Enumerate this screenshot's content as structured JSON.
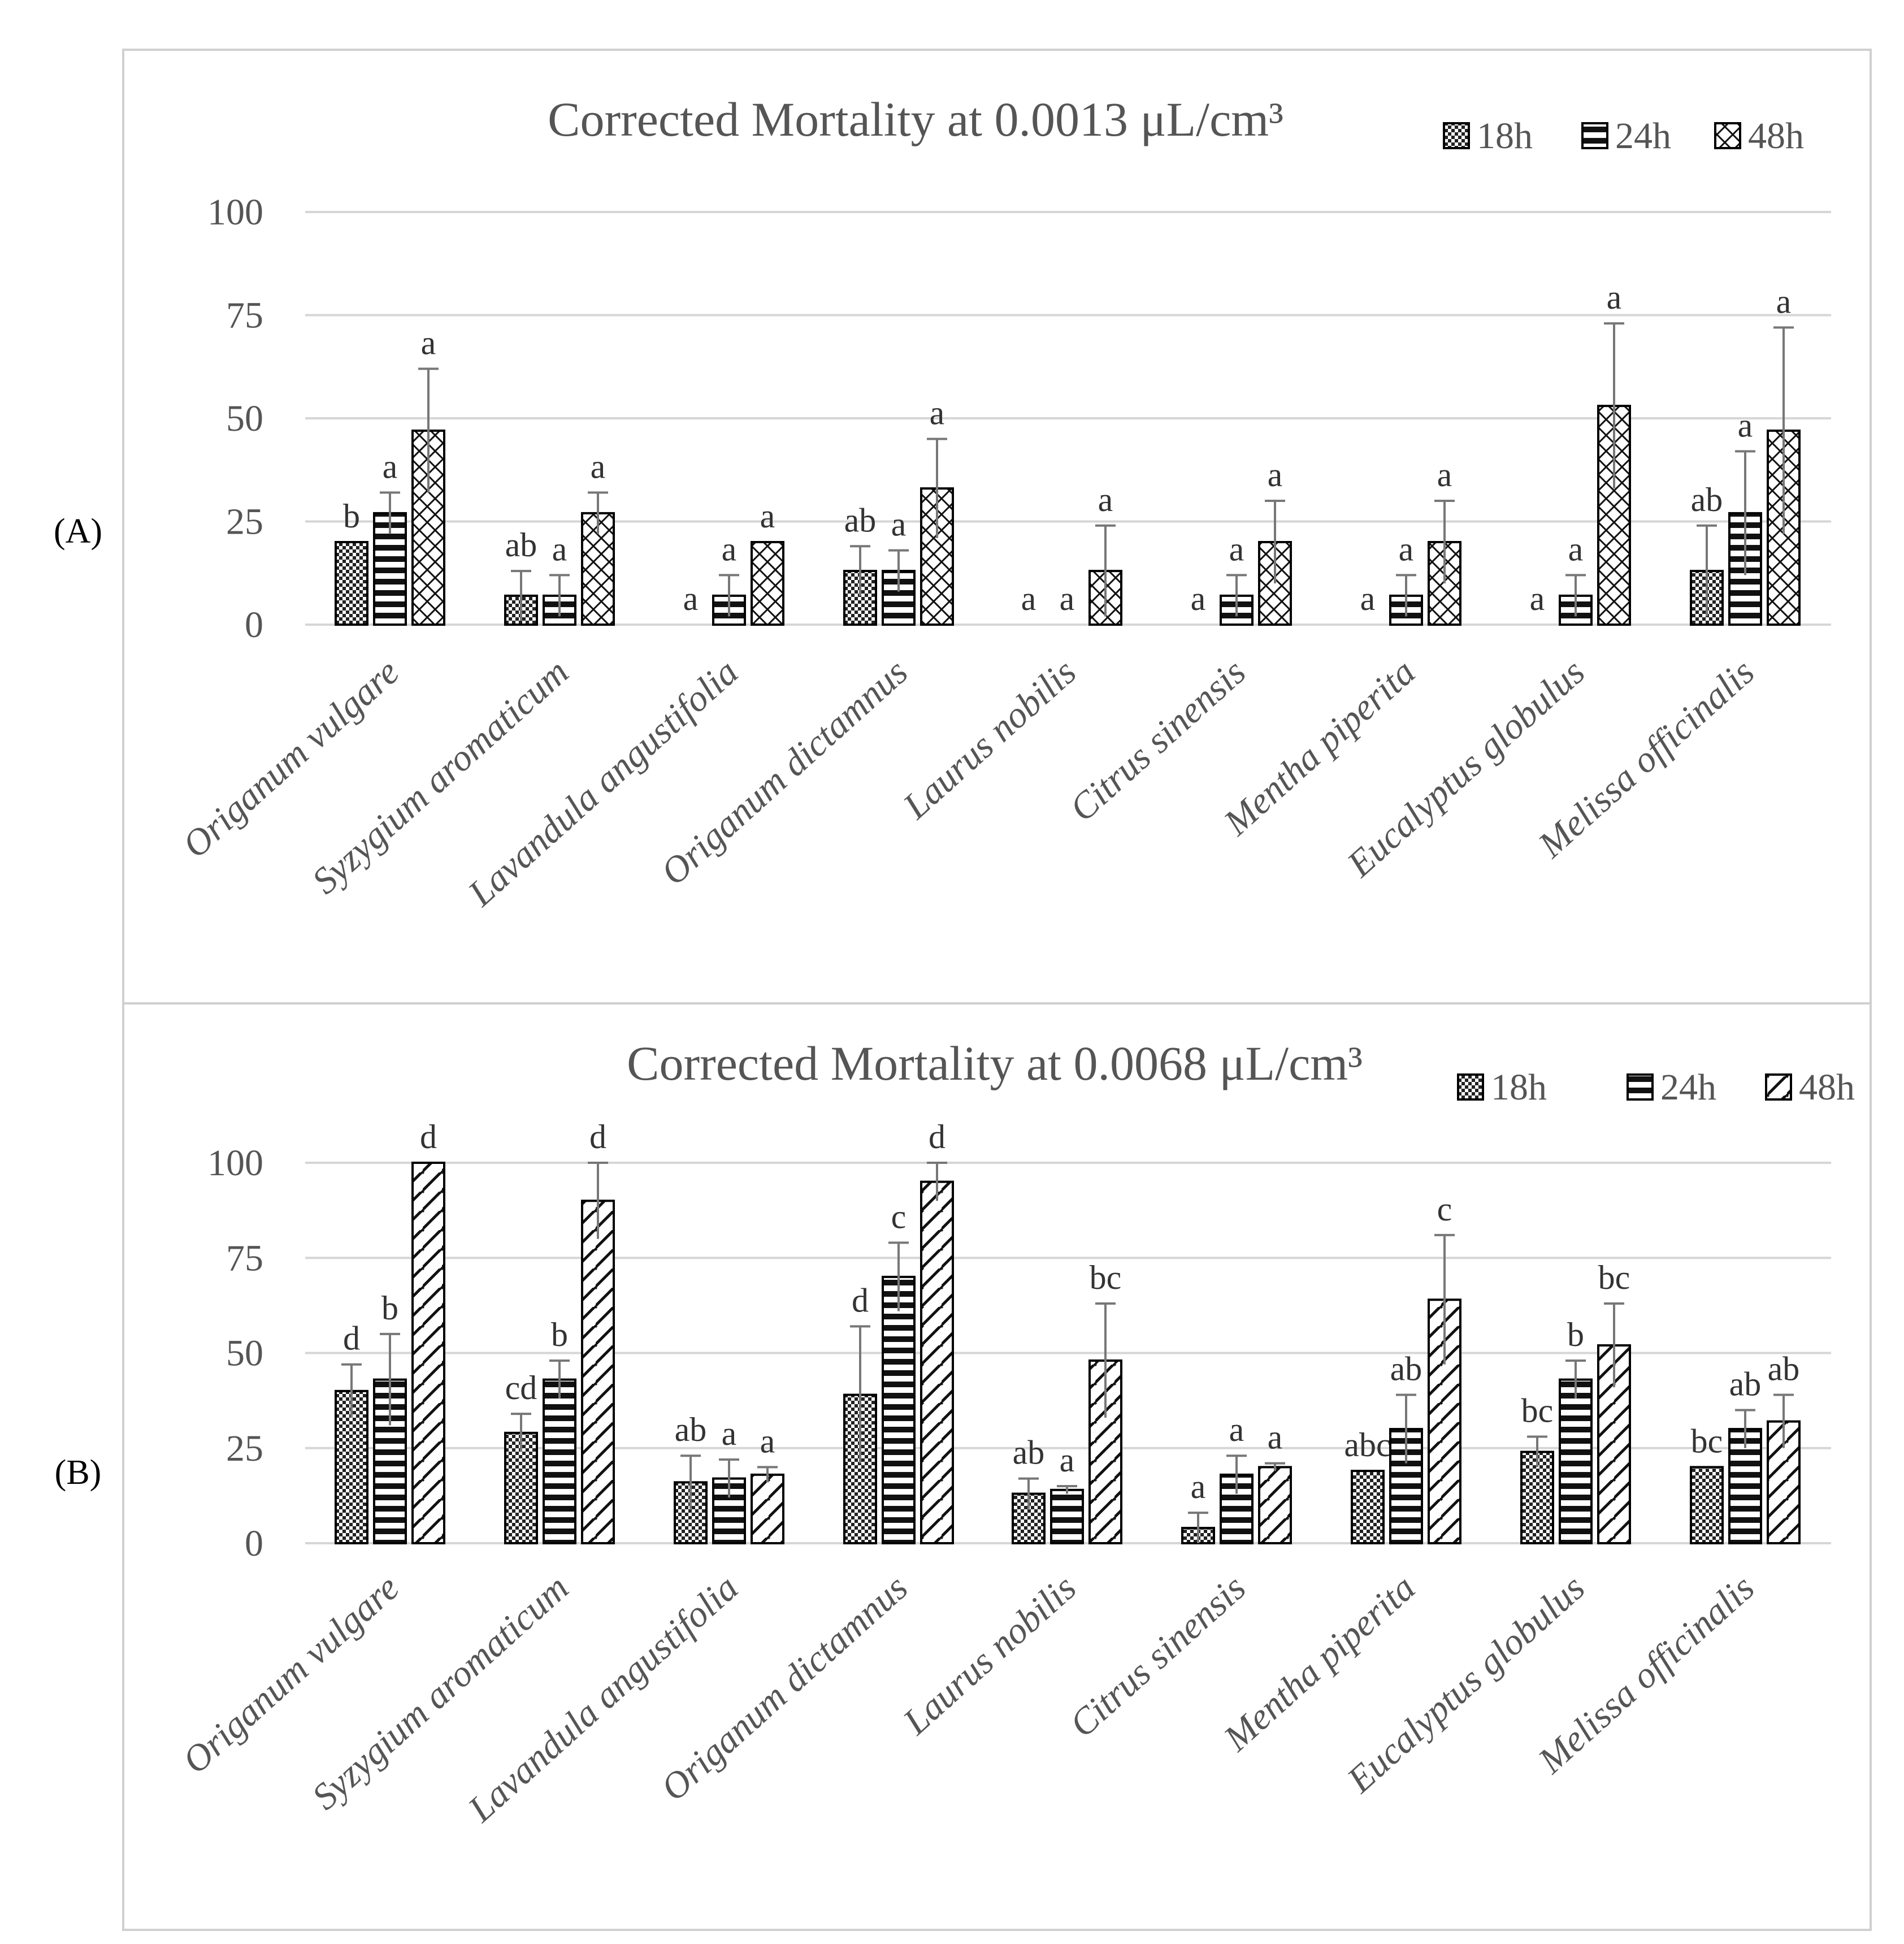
{
  "panel_labels": [
    "(A)",
    "(B)"
  ],
  "legend": {
    "swatch_colors": [
      "#555555",
      "#1e1e1e",
      "#ffffff"
    ]
  },
  "chart_data": [
    {
      "type": "bar",
      "title": "Corrected Mortality at 0.0013 μL/cm³",
      "panel_label": "(A)",
      "xlabel": "",
      "ylabel": "",
      "ylim": [
        0,
        100
      ],
      "yticks": [
        0,
        25,
        50,
        75,
        100
      ],
      "grid": true,
      "legend_position": "top-right",
      "categories": [
        "Origanum vulgare",
        "Syzygium aromaticum",
        "Lavandula angustifolia",
        "Origanum dictamnus",
        "Laurus nobilis",
        "Citrus sinensis",
        "Mentha piperita",
        "Eucalyptus globulus",
        "Melissa officinalis"
      ],
      "series": [
        {
          "name": "18h",
          "pattern": "checker",
          "values": [
            20,
            7,
            0,
            13,
            0,
            0,
            0,
            0,
            13
          ],
          "errors": [
            0,
            6,
            0,
            6,
            0,
            0,
            0,
            0,
            11
          ],
          "letters": [
            "b",
            "ab",
            "a",
            "ab",
            "a",
            "a",
            "a",
            "a",
            "ab"
          ]
        },
        {
          "name": "24h",
          "pattern": "horizontal",
          "values": [
            27,
            7,
            7,
            13,
            0,
            7,
            7,
            7,
            27
          ],
          "errors": [
            5,
            5,
            5,
            5,
            0,
            5,
            5,
            5,
            15
          ],
          "letters": [
            "a",
            "a",
            "a",
            "a",
            "a",
            "a",
            "a",
            "a",
            "a"
          ]
        },
        {
          "name": "48h",
          "pattern": "crosshatch",
          "values": [
            47,
            27,
            20,
            33,
            13,
            20,
            20,
            53,
            47
          ],
          "errors": [
            15,
            5,
            0,
            12,
            11,
            10,
            10,
            20,
            25
          ],
          "letters": [
            "a",
            "a",
            "a",
            "a",
            "a",
            "a",
            "a",
            "a",
            "a"
          ]
        }
      ]
    },
    {
      "type": "bar",
      "title": "Corrected Mortality at 0.0068 μL/cm³",
      "panel_label": "(B)",
      "xlabel": "",
      "ylabel": "",
      "ylim": [
        0,
        100
      ],
      "yticks": [
        0,
        25,
        50,
        75,
        100
      ],
      "grid": true,
      "legend_position": "top-right",
      "categories": [
        "Origanum vulgare",
        "Syzygium aromaticum",
        "Lavandula angustifolia",
        "Origanum dictamnus",
        "Laurus nobilis",
        "Citrus sinensis",
        "Mentha piperita",
        "Eucalyptus globulus",
        "Melissa officinalis"
      ],
      "series": [
        {
          "name": "18h",
          "pattern": "checker",
          "values": [
            40,
            29,
            16,
            39,
            13,
            4,
            19,
            24,
            20
          ],
          "errors": [
            7,
            5,
            7,
            18,
            4,
            4,
            0,
            4,
            0
          ],
          "letters": [
            "d",
            "cd",
            "ab",
            "d",
            "ab",
            "a",
            "abc",
            "bc",
            "bc"
          ]
        },
        {
          "name": "24h",
          "pattern": "horizontal",
          "values": [
            43,
            43,
            17,
            70,
            14,
            18,
            30,
            43,
            30
          ],
          "errors": [
            12,
            5,
            5,
            9,
            1,
            5,
            9,
            5,
            5
          ],
          "letters": [
            "b",
            "b",
            "a",
            "c",
            "a",
            "a",
            "ab",
            "b",
            "ab"
          ]
        },
        {
          "name": "48h",
          "pattern": "diagonal",
          "values": [
            100,
            90,
            18,
            95,
            48,
            20,
            64,
            52,
            32
          ],
          "errors": [
            0,
            10,
            2,
            5,
            15,
            1,
            17,
            11,
            7
          ],
          "letters": [
            "d",
            "d",
            "a",
            "d",
            "bc",
            "a",
            "c",
            "bc",
            "ab"
          ]
        }
      ]
    }
  ]
}
